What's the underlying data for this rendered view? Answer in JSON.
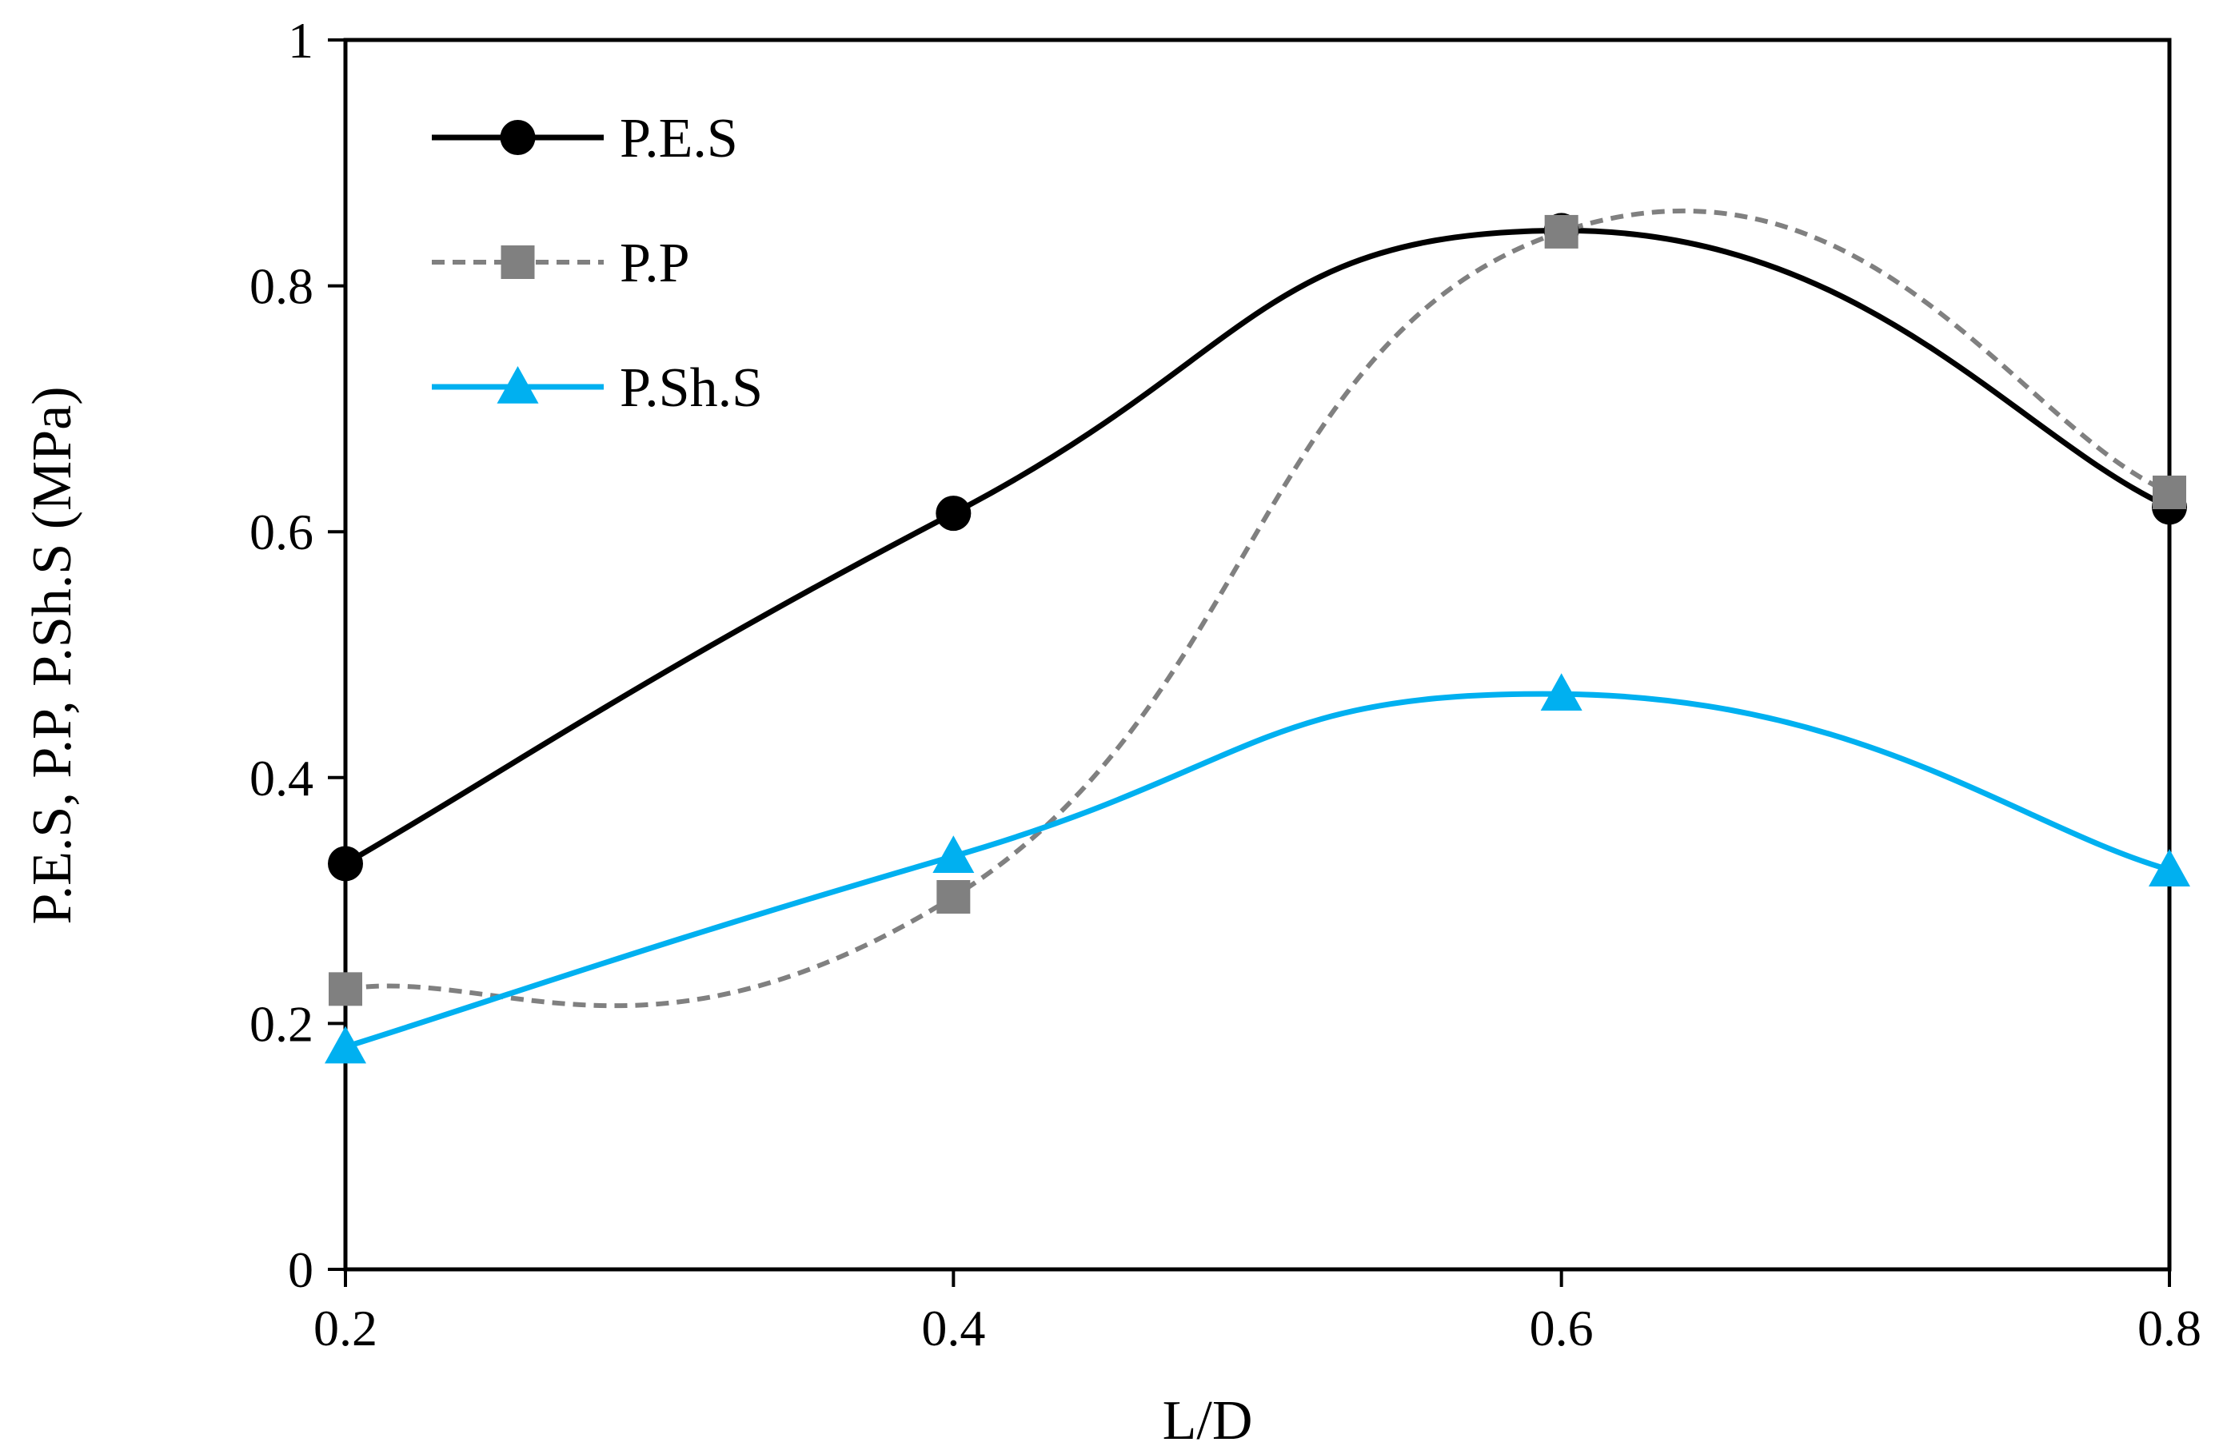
{
  "chart_data": {
    "type": "line",
    "title": "",
    "xlabel": "L/D",
    "ylabel": "P.E.S, P.P, P.Sh.S (MPa)",
    "x": [
      0.2,
      0.4,
      0.6,
      0.8
    ],
    "xlim": [
      0.2,
      0.8
    ],
    "ylim": [
      0,
      1
    ],
    "x_ticks": [
      "0.2",
      "0.4",
      "0.6",
      "0.8"
    ],
    "y_ticks": [
      "0",
      "0.2",
      "0.4",
      "0.6",
      "0.8",
      "1"
    ],
    "grid": false,
    "legend_position": "top-left",
    "smooth": true,
    "series": [
      {
        "name": "P.E.S",
        "values": [
          0.33,
          0.615,
          0.845,
          0.62
        ],
        "color": "#000000",
        "marker": "circle",
        "line_style": "solid"
      },
      {
        "name": "P.P",
        "values": [
          0.228,
          0.303,
          0.844,
          0.632
        ],
        "color": "#808080",
        "marker": "square",
        "line_style": "dashed"
      },
      {
        "name": "P.Sh.S",
        "values": [
          0.181,
          0.336,
          0.468,
          0.325
        ],
        "color": "#00B0F0",
        "marker": "triangle",
        "line_style": "solid"
      }
    ]
  }
}
